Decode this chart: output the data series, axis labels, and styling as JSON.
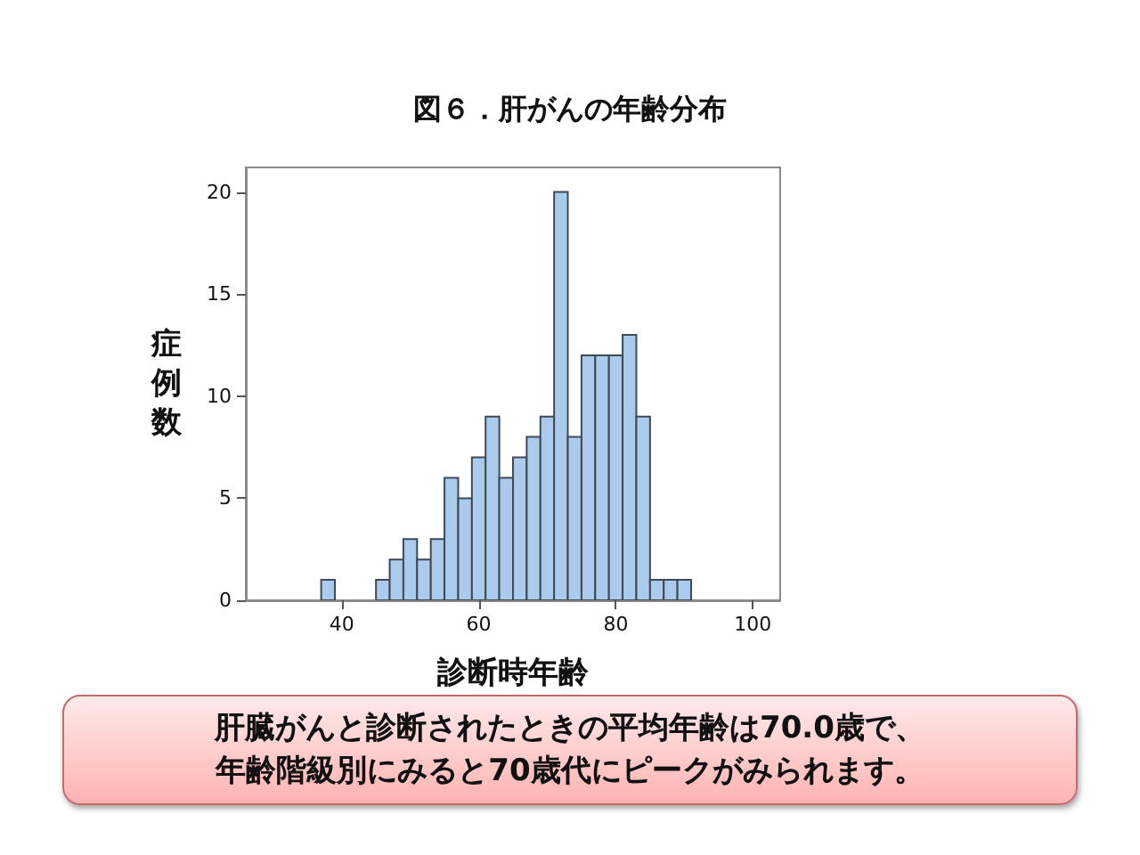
{
  "chart_data": {
    "type": "histogram",
    "title": "図６．肝がんの年齢分布",
    "xlabel": "診断時年齢",
    "ylabel": "症例数",
    "bins": [
      37,
      39,
      41,
      43,
      45,
      47,
      49,
      51,
      53,
      55,
      57,
      59,
      61,
      63,
      65,
      67,
      69,
      71,
      73,
      75,
      77,
      79,
      81,
      83,
      85,
      87,
      89,
      91
    ],
    "values": [
      1,
      0,
      0,
      0,
      1,
      2,
      3,
      2,
      3,
      6,
      5,
      7,
      9,
      6,
      7,
      8,
      9,
      20,
      8,
      12,
      12,
      12,
      13,
      9,
      1,
      1,
      1
    ],
    "color": "#aacbec",
    "xlim": [
      26,
      104
    ],
    "xticks": [
      40,
      60,
      80,
      100
    ],
    "ylim": [
      0,
      21.2
    ],
    "yticks": [
      0,
      5,
      10,
      15,
      20
    ],
    "grid": false,
    "annotations": [
      "肝臓がんと診断されたときの平均年齢は70.0歳で、",
      "年齢階級別にみると70歳代にピークがみられます。"
    ]
  }
}
